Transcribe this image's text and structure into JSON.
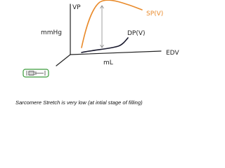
{
  "diagram": {
    "y_axis_label": "VP",
    "y_axis_unit": "mmHg",
    "x_axis_label": "EDV",
    "x_axis_unit": "mL",
    "upper_curve_label": "SP(V)",
    "lower_curve_label": "DP(V)"
  },
  "caption": "Sarcomere Stretch is very low (at intial stage of filling)"
}
